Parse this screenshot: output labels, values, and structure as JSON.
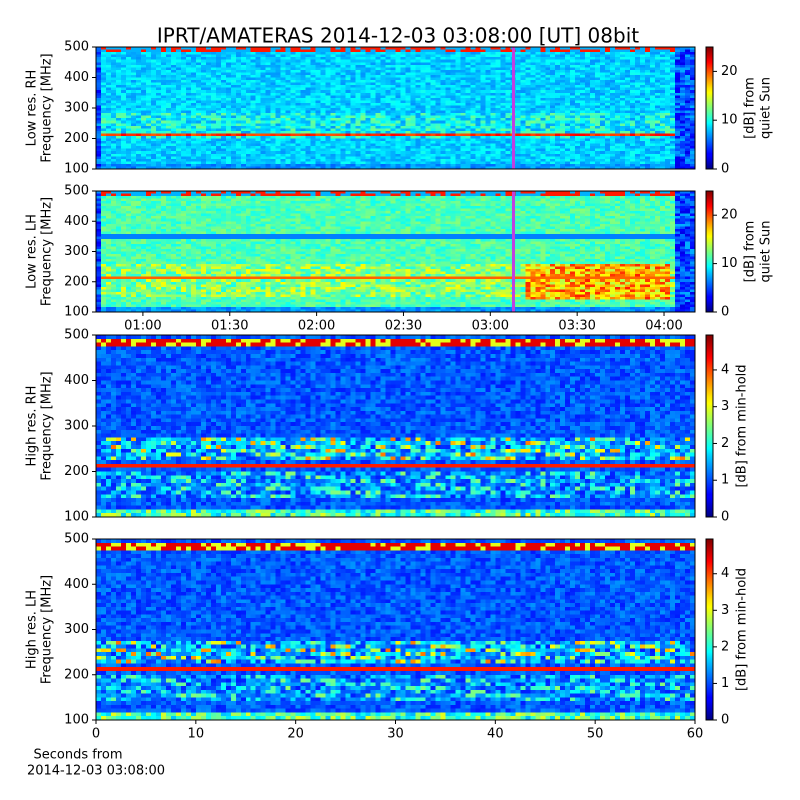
{
  "chart_data": [
    {
      "type": "heatmap",
      "title": "IPRT/AMATERAS 2014-12-03 03:08:00 [UT]   08bit",
      "ylabel": [
        "Low res. RH",
        "Frequency [MHz]"
      ],
      "ylim": [
        100,
        500
      ],
      "yticks": [
        100,
        200,
        300,
        400,
        500
      ],
      "xlim": [
        43.8,
        250.7
      ],
      "marker": {
        "x": 188,
        "color": "#c040e0"
      },
      "colorbar": {
        "label": [
          "[dB] from",
          "quiet Sun"
        ],
        "lim": [
          0,
          25
        ],
        "ticks": [
          0,
          10,
          20
        ],
        "colormap": "jet"
      }
    },
    {
      "type": "heatmap",
      "ylabel": [
        "Low res. LH",
        "Frequency [MHz]"
      ],
      "ylim": [
        100,
        500
      ],
      "yticks": [
        100,
        200,
        300,
        400,
        500
      ],
      "xlim": [
        43.8,
        250.7
      ],
      "xticks": [
        {
          "value": 60,
          "label": "01:00"
        },
        {
          "value": 90,
          "label": "01:30"
        },
        {
          "value": 120,
          "label": "02:00"
        },
        {
          "value": 150,
          "label": "02:30"
        },
        {
          "value": 180,
          "label": "03:00"
        },
        {
          "value": 210,
          "label": "03:30"
        },
        {
          "value": 240,
          "label": "04:00"
        }
      ],
      "marker": {
        "x": 188,
        "color": "#c040e0"
      },
      "colorbar": {
        "label": [
          "[dB] from",
          "quiet Sun"
        ],
        "lim": [
          0,
          25
        ],
        "ticks": [
          0,
          10,
          20
        ],
        "colormap": "jet"
      }
    },
    {
      "type": "heatmap",
      "ylabel": [
        "High res. RH",
        "Frequency [MHz]"
      ],
      "ylim": [
        100,
        500
      ],
      "yticks": [
        100,
        200,
        300,
        400,
        500
      ],
      "xlim": [
        0,
        60
      ],
      "colorbar": {
        "label": [
          "[dB] from min-hold"
        ],
        "lim": [
          0,
          4.95
        ],
        "ticks": [
          0,
          1,
          2,
          3,
          4
        ],
        "colormap": "jet"
      }
    },
    {
      "type": "heatmap",
      "ylabel": [
        "High res. LH",
        "Frequency [MHz]"
      ],
      "ylim": [
        100,
        500
      ],
      "yticks": [
        100,
        200,
        300,
        400,
        500
      ],
      "xlim": [
        0,
        60
      ],
      "xticks": [
        0,
        10,
        20,
        30,
        40,
        50,
        60
      ],
      "xlabel": [
        "Seconds from",
        "2014-12-03 03:08:00"
      ],
      "colorbar": {
        "label": [
          "[dB] from min-hold"
        ],
        "lim": [
          0,
          4.95
        ],
        "ticks": [
          0,
          1,
          2,
          3,
          4
        ],
        "colormap": "jet"
      }
    }
  ]
}
